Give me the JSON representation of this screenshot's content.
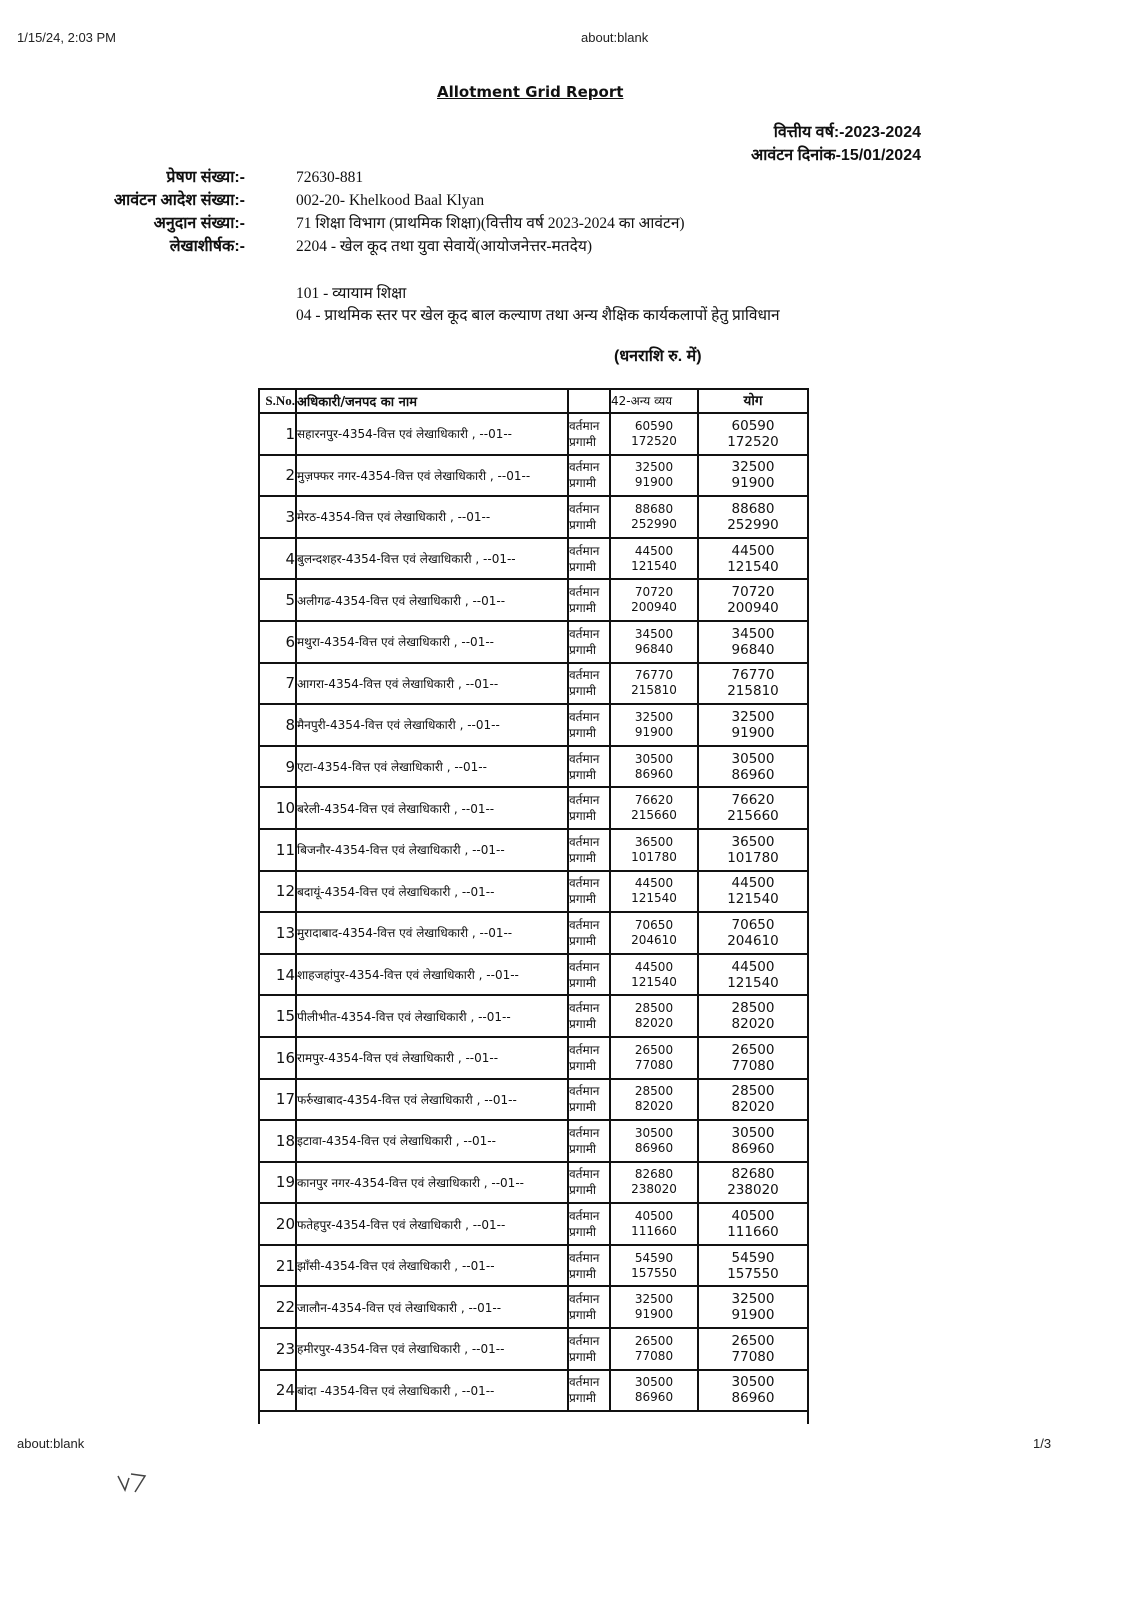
{
  "browser_header": {
    "datetime": "1/15/24, 2:03 PM",
    "url": "about:blank"
  },
  "browser_footer": {
    "url": "about:blank",
    "page": "1/3"
  },
  "report": {
    "title": "Allotment Grid Report",
    "financial_year": "वित्तीय वर्ष:-2023-2024",
    "allotment_date": "आवंटन दिनांक-15/01/2024",
    "fields": [
      {
        "label": "प्रेषण संख्या:-",
        "value": "72630-881"
      },
      {
        "label": "आवंटन आदेश संख्या:-",
        "value": "002-20- Khelkood Baal Klyan"
      },
      {
        "label": "अनुदान संख्या:-",
        "value": "71 शिक्षा विभाग (प्राथमिक शिक्षा)(वित्तीय वर्ष 2023-2024 का आवंटन)"
      },
      {
        "label": "लेखाशीर्षक:-",
        "value": "2204 - खेल कूद तथा युवा सेवायें(आयोजनेत्तर-मतदेय)"
      }
    ],
    "subhead_1": "101 - व्यायाम शिक्षा",
    "subhead_2": "04 - प्राथमिक स्तर पर खेल कूद बाल कल्याण तथा अन्य शैक्षिक कार्यकलापों हेतु प्राविधान",
    "amount_unit": "(धनराशि रु. में)"
  },
  "table": {
    "headers": {
      "sno": "S.No.",
      "name": "अधिकारी/जनपद का नाम",
      "label": "",
      "col42": "42-अन्य व्यय",
      "total": "योग"
    },
    "label_current": "वर्तमान",
    "label_progressive": "प्रगामी",
    "rows": [
      {
        "sno": "1",
        "name": "सहारनपुर-4354-वित्त एवं लेखाधिकारी , --01--",
        "current": "60590",
        "progressive": "172520"
      },
      {
        "sno": "2",
        "name": "मुज़फ्फर नगर-4354-वित्त एवं लेखाधिकारी , --01--",
        "current": "32500",
        "progressive": "91900"
      },
      {
        "sno": "3",
        "name": "मेरठ-4354-वित्त एवं लेखाधिकारी , --01--",
        "current": "88680",
        "progressive": "252990"
      },
      {
        "sno": "4",
        "name": "बुलन्दशहर-4354-वित्त एवं लेखाधिकारी , --01--",
        "current": "44500",
        "progressive": "121540"
      },
      {
        "sno": "5",
        "name": "अलीगढ-4354-वित्त एवं लेखाधिकारी , --01--",
        "current": "70720",
        "progressive": "200940"
      },
      {
        "sno": "6",
        "name": "मथुरा-4354-वित्त एवं लेखाधिकारी , --01--",
        "current": "34500",
        "progressive": "96840"
      },
      {
        "sno": "7",
        "name": "आगरा-4354-वित्त एवं लेखाधिकारी , --01--",
        "current": "76770",
        "progressive": "215810"
      },
      {
        "sno": "8",
        "name": "मैनपुरी-4354-वित्त एवं लेखाधिकारी , --01--",
        "current": "32500",
        "progressive": "91900"
      },
      {
        "sno": "9",
        "name": "एटा-4354-वित्त एवं लेखाधिकारी , --01--",
        "current": "30500",
        "progressive": "86960"
      },
      {
        "sno": "10",
        "name": "बरेली-4354-वित्त एवं लेखाधिकारी , --01--",
        "current": "76620",
        "progressive": "215660"
      },
      {
        "sno": "11",
        "name": "बिजनौर-4354-वित्त एवं लेखाधिकारी , --01--",
        "current": "36500",
        "progressive": "101780"
      },
      {
        "sno": "12",
        "name": "बदायूं-4354-वित्त एवं लेखाधिकारी , --01--",
        "current": "44500",
        "progressive": "121540"
      },
      {
        "sno": "13",
        "name": "मुरादाबाद-4354-वित्त एवं लेखाधिकारी , --01--",
        "current": "70650",
        "progressive": "204610"
      },
      {
        "sno": "14",
        "name": "शाहजहांपुर-4354-वित्त एवं लेखाधिकारी , --01--",
        "current": "44500",
        "progressive": "121540"
      },
      {
        "sno": "15",
        "name": "पीलीभीत-4354-वित्त एवं लेखाधिकारी , --01--",
        "current": "28500",
        "progressive": "82020"
      },
      {
        "sno": "16",
        "name": "रामपुर-4354-वित्त एवं लेखाधिकारी , --01--",
        "current": "26500",
        "progressive": "77080"
      },
      {
        "sno": "17",
        "name": "फर्रुखाबाद-4354-वित्त एवं लेखाधिकारी , --01--",
        "current": "28500",
        "progressive": "82020"
      },
      {
        "sno": "18",
        "name": "इटावा-4354-वित्त एवं लेखाधिकारी , --01--",
        "current": "30500",
        "progressive": "86960"
      },
      {
        "sno": "19",
        "name": "कानपुर नगर-4354-वित्त एवं लेखाधिकारी , --01--",
        "current": "82680",
        "progressive": "238020"
      },
      {
        "sno": "20",
        "name": "फतेहपुर-4354-वित्त एवं लेखाधिकारी , --01--",
        "current": "40500",
        "progressive": "111660"
      },
      {
        "sno": "21",
        "name": "झाँसी-4354-वित्त एवं लेखाधिकारी , --01--",
        "current": "54590",
        "progressive": "157550"
      },
      {
        "sno": "22",
        "name": "जालौन-4354-वित्त एवं लेखाधिकारी , --01--",
        "current": "32500",
        "progressive": "91900"
      },
      {
        "sno": "23",
        "name": "हमीरपुर-4354-वित्त एवं लेखाधिकारी , --01--",
        "current": "26500",
        "progressive": "77080"
      },
      {
        "sno": "24",
        "name": "बांदा -4354-वित्त एवं लेखाधिकारी , --01--",
        "current": "30500",
        "progressive": "86960"
      }
    ]
  }
}
